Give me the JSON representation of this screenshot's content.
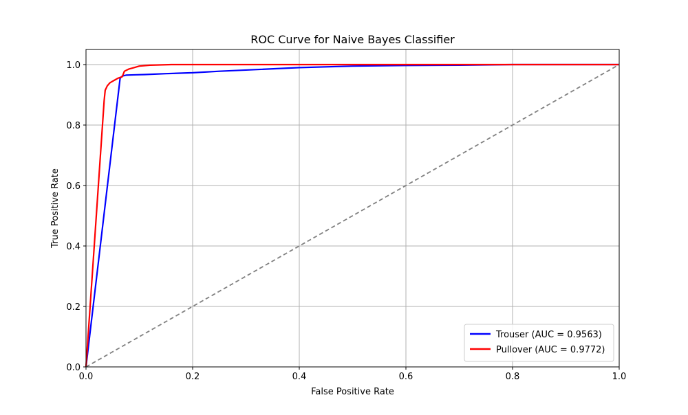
{
  "chart_data": {
    "type": "line",
    "title": "ROC Curve for Naive Bayes Classifier",
    "xlabel": "False Positive Rate",
    "ylabel": "True Positive Rate",
    "xlim": [
      0,
      1
    ],
    "ylim": [
      0,
      1.05
    ],
    "xticks": [
      "0.0",
      "0.2",
      "0.4",
      "0.6",
      "0.8",
      "1.0"
    ],
    "yticks": [
      "0.0",
      "0.2",
      "0.4",
      "0.6",
      "0.8",
      "1.0"
    ],
    "grid": true,
    "legend_position": "lower-right",
    "series": [
      {
        "name": "Trouser (AUC = 0.9563)",
        "color": "#0000ff",
        "x": [
          0.0,
          0.064,
          0.068,
          0.075,
          0.09,
          0.11,
          0.15,
          0.2,
          0.25,
          0.3,
          0.4,
          0.5,
          0.6,
          0.7,
          0.8,
          1.0
        ],
        "y": [
          0.0,
          0.955,
          0.962,
          0.965,
          0.966,
          0.967,
          0.97,
          0.973,
          0.978,
          0.982,
          0.99,
          0.995,
          0.997,
          0.998,
          1.0,
          1.0
        ]
      },
      {
        "name": "Pullover (AUC = 0.9772)",
        "color": "#ff0000",
        "x": [
          0.0,
          0.034,
          0.036,
          0.04,
          0.045,
          0.05,
          0.055,
          0.06,
          0.068,
          0.072,
          0.08,
          0.09,
          0.1,
          0.12,
          0.16,
          0.3,
          1.0
        ],
        "y": [
          0.0,
          0.88,
          0.915,
          0.93,
          0.94,
          0.945,
          0.95,
          0.955,
          0.96,
          0.978,
          0.985,
          0.99,
          0.995,
          0.998,
          1.0,
          1.0,
          1.0
        ]
      },
      {
        "name": "",
        "color": "#808080",
        "dashed": true,
        "x": [
          0,
          1
        ],
        "y": [
          0,
          1
        ]
      }
    ]
  }
}
